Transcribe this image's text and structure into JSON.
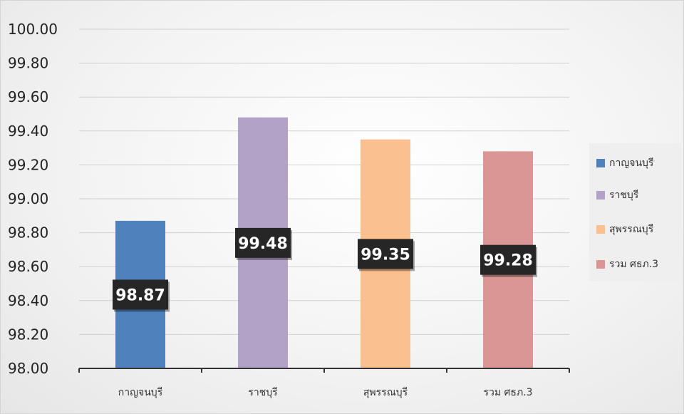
{
  "chart_data": {
    "type": "bar",
    "categories": [
      "กาญจนบุรี",
      "ราชบุรี",
      "สุพรรณบุรี",
      "รวม ศธภ.3"
    ],
    "values": [
      98.87,
      99.48,
      99.35,
      99.28
    ],
    "data_labels": [
      "98.87",
      "99.48",
      "99.35",
      "99.28"
    ],
    "colors": [
      "#4f81bd",
      "#b3a2c7",
      "#fac090",
      "#d99694"
    ],
    "ylim": [
      98.0,
      100.0
    ],
    "yticks": [
      "98.00",
      "98.20",
      "98.40",
      "98.60",
      "98.80",
      "99.00",
      "99.20",
      "99.40",
      "99.60",
      "99.80",
      "100.00"
    ],
    "grid": true,
    "legend_position": "right",
    "legend": [
      {
        "label": "กาญจนบุรี",
        "color": "#4f81bd"
      },
      {
        "label": "ราชบุรี",
        "color": "#b3a2c7"
      },
      {
        "label": "สุพรรณบุรี",
        "color": "#fac090"
      },
      {
        "label": "รวม ศธภ.3",
        "color": "#d99694"
      }
    ]
  }
}
